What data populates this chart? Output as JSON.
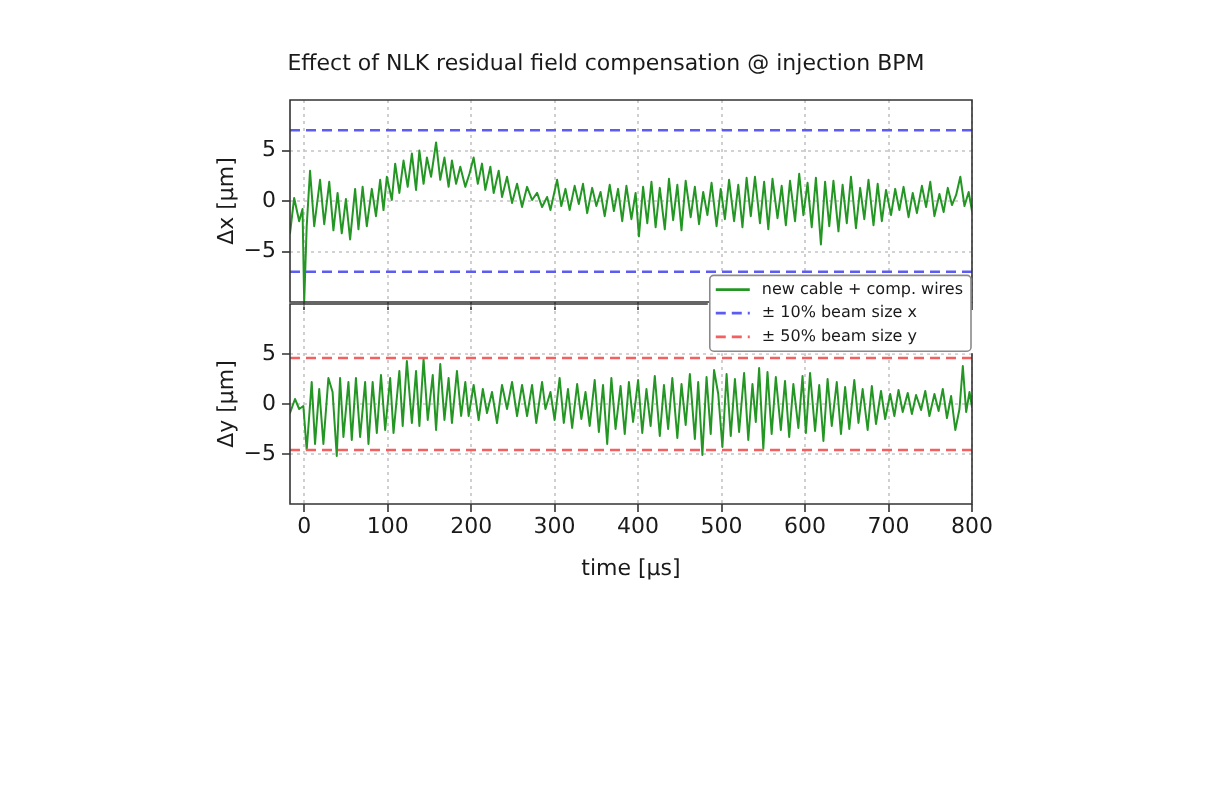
{
  "chart_data": [
    {
      "type": "line",
      "title": "Effect of NLK residual field compensation @ injection BPM",
      "ylabel": "Δx [μm]",
      "x": [
        -17,
        -12,
        -6,
        -2,
        0,
        3,
        7,
        12,
        19,
        24,
        30,
        35,
        40,
        45,
        50,
        55,
        61,
        65,
        70,
        75,
        81,
        86,
        91,
        95,
        99,
        105,
        109,
        114,
        119,
        124,
        129,
        134,
        138,
        143,
        147,
        152,
        158,
        163,
        168,
        173,
        177,
        182,
        187,
        193,
        198,
        203,
        208,
        213,
        217,
        223,
        227,
        233,
        237,
        243,
        249,
        255,
        261,
        267,
        273,
        279,
        285,
        291,
        295,
        303,
        308,
        313,
        318,
        324,
        329,
        334,
        339,
        345,
        350,
        355,
        360,
        366,
        371,
        376,
        381,
        386,
        392,
        397,
        401,
        406,
        411,
        416,
        421,
        426,
        432,
        437,
        442,
        447,
        452,
        457,
        463,
        468,
        473,
        478,
        483,
        488,
        494,
        499,
        504,
        509,
        515,
        520,
        525,
        530,
        535,
        540,
        546,
        551,
        556,
        561,
        567,
        572,
        577,
        582,
        588,
        593,
        598,
        603,
        608,
        613,
        619,
        624,
        629,
        634,
        640,
        645,
        650,
        655,
        661,
        666,
        671,
        676,
        682,
        687,
        692,
        697,
        703,
        708,
        713,
        718,
        724,
        729,
        734,
        740,
        745,
        750,
        755,
        761,
        766,
        771,
        776,
        781,
        786,
        791,
        796,
        800
      ],
      "series": [
        {
          "name": "new cable + comp. wires",
          "color": "#249624",
          "values": [
            -3.2,
            0.3,
            -2.0,
            -0.8,
            -10,
            -2.5,
            3.0,
            -2.5,
            2.1,
            -2.3,
            1.9,
            -2.9,
            0.8,
            -3.2,
            0.2,
            -3.8,
            1.2,
            -2.8,
            1.4,
            -2.5,
            1.2,
            -1.5,
            2.1,
            -0.9,
            2.4,
            0.1,
            3.7,
            0.8,
            4.0,
            1.4,
            4.7,
            1.1,
            5.0,
            1.7,
            4.3,
            2.4,
            5.8,
            2.1,
            4.3,
            1.4,
            4.0,
            1.7,
            3.4,
            1.4,
            2.7,
            4.3,
            1.7,
            3.7,
            1.1,
            3.4,
            0.8,
            3.0,
            0.4,
            2.4,
            -0.2,
            1.7,
            -0.6,
            1.4,
            0.1,
            0.8,
            -0.6,
            0.4,
            -0.9,
            2.1,
            -0.5,
            1.2,
            -0.9,
            1.5,
            -0.3,
            1.7,
            -1.2,
            1.3,
            -0.5,
            0.9,
            -1.5,
            1.6,
            -1.0,
            1.2,
            -2.0,
            1.5,
            -1.8,
            0.8,
            -3.5,
            1.4,
            -2.2,
            1.9,
            -2.6,
            1.3,
            -2.8,
            2.2,
            -1.9,
            1.6,
            -2.9,
            2.0,
            -1.6,
            1.4,
            -2.3,
            0.9,
            -1.4,
            1.8,
            -2.5,
            1.2,
            -1.8,
            2.1,
            -2.0,
            1.6,
            -2.6,
            2.3,
            -1.5,
            2.4,
            -2.2,
            1.9,
            -2.8,
            2.2,
            -1.7,
            1.5,
            -2.4,
            2.0,
            -2.0,
            2.7,
            -1.4,
            1.8,
            -2.6,
            2.3,
            -4.3,
            1.9,
            -2.5,
            2.0,
            -3.0,
            1.6,
            -2.2,
            2.4,
            -2.7,
            1.3,
            -1.8,
            2.1,
            -2.4,
            1.7,
            -2.0,
            1.1,
            -1.4,
            1.2,
            -0.9,
            1.4,
            -1.6,
            0.8,
            -1.2,
            1.5,
            -0.6,
            1.9,
            -1.5,
            0.7,
            -1.1,
            1.3,
            -0.4,
            0.6,
            2.4,
            -0.5,
            0.9,
            -1.0
          ]
        }
      ],
      "xlim": [
        -17,
        800
      ],
      "xticks": [
        0,
        100,
        200,
        300,
        400,
        500,
        600,
        700,
        800
      ],
      "ylim": [
        -10,
        10
      ],
      "yticks": [
        -5,
        0,
        5
      ],
      "ref_lines": [
        {
          "axis": "y",
          "value": 7,
          "label": "± 10% beam size x",
          "color": "#5c5cf2",
          "line_style": "dashed"
        },
        {
          "axis": "y",
          "value": -7,
          "color": "#5c5cf2",
          "line_style": "dashed"
        }
      ],
      "grid": true,
      "legend": "bottom right",
      "tick_labels": "y"
    },
    {
      "type": "line",
      "xlabel": "time [μs]",
      "ylabel": "Δy [μm]",
      "x": [
        -17,
        -11,
        -6,
        -1,
        3,
        9,
        13,
        18,
        23,
        29,
        34,
        39,
        43,
        47,
        53,
        57,
        62,
        67,
        73,
        77,
        82,
        87,
        92,
        97,
        103,
        107,
        114,
        118,
        123,
        129,
        134,
        138,
        143,
        148,
        154,
        158,
        163,
        168,
        173,
        177,
        183,
        188,
        193,
        197,
        203,
        209,
        214,
        219,
        225,
        231,
        237,
        243,
        249,
        255,
        261,
        267,
        273,
        278,
        285,
        289,
        295,
        300,
        306,
        311,
        316,
        321,
        327,
        332,
        337,
        342,
        348,
        353,
        358,
        363,
        368,
        373,
        379,
        384,
        389,
        394,
        400,
        405,
        410,
        415,
        420,
        426,
        431,
        436,
        441,
        447,
        452,
        457,
        462,
        468,
        472,
        477,
        482,
        487,
        491,
        496,
        501,
        506,
        511,
        516,
        521,
        527,
        532,
        537,
        541,
        545,
        550,
        555,
        560,
        565,
        571,
        576,
        581,
        586,
        592,
        597,
        601,
        606,
        612,
        617,
        622,
        627,
        632,
        638,
        643,
        648,
        653,
        659,
        664,
        669,
        675,
        680,
        685,
        691,
        696,
        702,
        707,
        712,
        717,
        723,
        728,
        733,
        739,
        744,
        749,
        755,
        760,
        765,
        770,
        775,
        780,
        785,
        789,
        793,
        797,
        800
      ],
      "series": [
        {
          "color": "#249624",
          "values": [
            -0.9,
            0.5,
            -0.5,
            -0.2,
            -4.6,
            2.2,
            -4.0,
            1.5,
            -4.0,
            2.6,
            1.2,
            -5.2,
            2.6,
            -3.3,
            2.2,
            -3.6,
            2.6,
            -3.3,
            2.2,
            -4.0,
            2.2,
            -2.9,
            2.9,
            -2.6,
            2.6,
            -2.9,
            3.3,
            -2.2,
            4.3,
            -1.9,
            3.3,
            -2.2,
            4.5,
            -1.6,
            2.9,
            -2.6,
            4.0,
            -1.6,
            2.6,
            -1.9,
            3.3,
            -1.2,
            2.2,
            -1.2,
            1.9,
            -1.6,
            1.5,
            -0.9,
            1.2,
            -1.9,
            1.9,
            -0.5,
            2.2,
            -1.2,
            1.9,
            -1.2,
            1.9,
            -1.9,
            2.2,
            -0.5,
            1.2,
            -1.6,
            2.6,
            -1.9,
            1.5,
            -2.4,
            2.0,
            -1.5,
            1.2,
            -2.2,
            2.4,
            -2.8,
            1.9,
            -4.0,
            2.6,
            -2.5,
            1.8,
            -3.0,
            2.2,
            -1.8,
            2.4,
            -2.9,
            1.5,
            -2.2,
            2.8,
            -3.2,
            1.9,
            -2.5,
            2.6,
            -3.4,
            2.0,
            -2.1,
            3.0,
            -3.5,
            2.2,
            -5.1,
            2.7,
            -3.0,
            3.4,
            1.0,
            -4.3,
            3.0,
            -3.2,
            2.5,
            -2.8,
            3.1,
            -3.6,
            2.0,
            -1.8,
            3.6,
            -4.5,
            3.2,
            -3.0,
            2.7,
            -2.6,
            2.3,
            -3.3,
            2.0,
            -2.4,
            2.8,
            -2.9,
            3.1,
            -2.7,
            1.9,
            -3.7,
            2.5,
            -2.2,
            2.2,
            -3.0,
            1.7,
            -2.5,
            2.4,
            -1.9,
            1.5,
            -2.6,
            1.8,
            -2.0,
            1.3,
            -1.5,
            1.0,
            -1.2,
            1.4,
            -0.8,
            1.1,
            -1.0,
            0.9,
            -0.6,
            1.3,
            -1.2,
            1.0,
            -0.7,
            1.5,
            -1.4,
            0.8,
            -2.6,
            -0.5,
            3.8,
            -0.8,
            1.2,
            -0.3
          ]
        }
      ],
      "xlim": [
        -17,
        800
      ],
      "xticks": [
        0,
        100,
        200,
        300,
        400,
        500,
        600,
        700,
        800
      ],
      "ylim": [
        -10,
        10
      ],
      "yticks": [
        -5,
        0,
        5
      ],
      "ref_lines": [
        {
          "axis": "y",
          "value": 4.6,
          "label": "± 50% beam size y",
          "color": "#f45f5f",
          "line_style": "dashed"
        },
        {
          "axis": "y",
          "value": -4.6,
          "color": "#f45f5f",
          "line_style": "dashed"
        }
      ],
      "grid": true
    }
  ]
}
